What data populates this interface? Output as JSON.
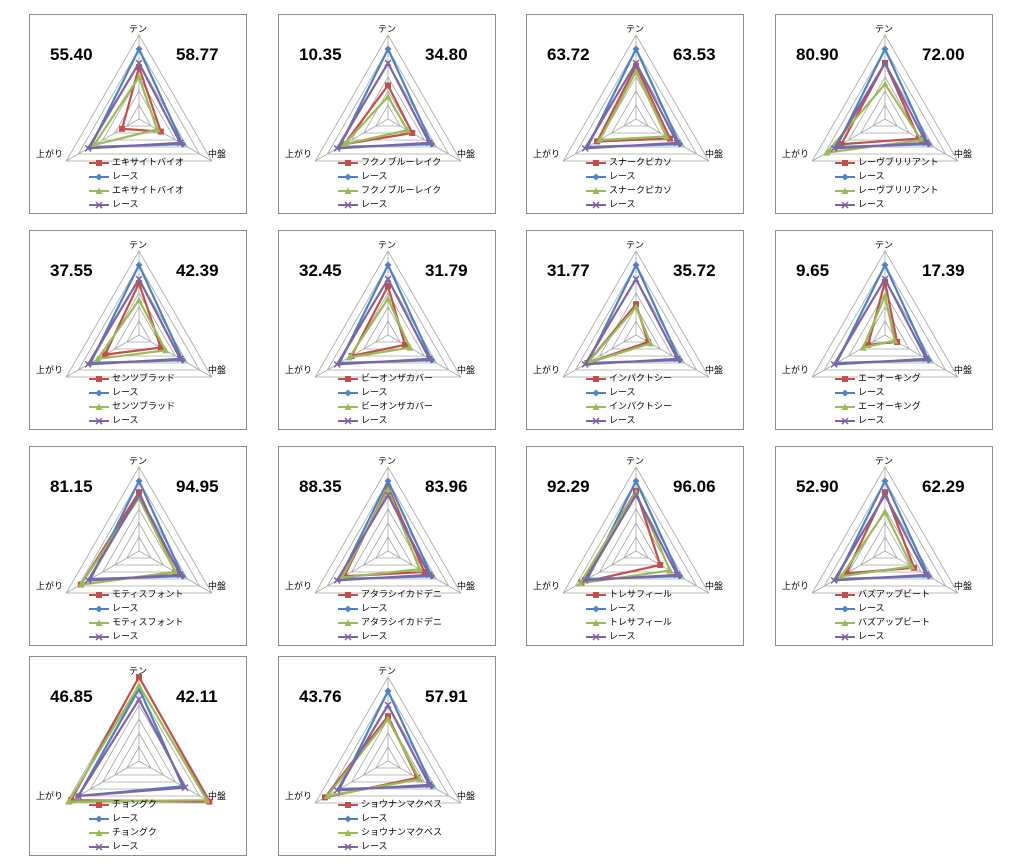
{
  "axes": [
    "テン",
    "中盤",
    "上がり"
  ],
  "colors": {
    "horse": "#c0504d",
    "race": "#4f81bd",
    "horse2": "#9bbb59",
    "race2": "#8064a2",
    "grid": "#a6a6a6"
  },
  "series_labels": {
    "race": "レース"
  },
  "chart_data": [
    {
      "type": "radar",
      "horse": "エキサイトバイオ",
      "left_value": "55.40",
      "right_value": "58.77",
      "rlim": [
        0,
        6
      ],
      "series": [
        {
          "name": "エキサイトバイオ",
          "values": [
            3.7,
            1.8,
            1.4
          ]
        },
        {
          "name": "レース",
          "values": [
            5.0,
            3.6,
            4.0
          ]
        },
        {
          "name": "エキサイトバイオ",
          "values": [
            3.0,
            1.5,
            3.7
          ]
        },
        {
          "name": "レース",
          "values": [
            4.0,
            3.4,
            4.2
          ]
        }
      ]
    },
    {
      "type": "radar",
      "horse": "フクノブルーレイク",
      "left_value": "10.35",
      "right_value": "34.80",
      "rlim": [
        0,
        6
      ],
      "series": [
        {
          "name": "フクノブルーレイク",
          "values": [
            2.4,
            2.0,
            3.6
          ]
        },
        {
          "name": "レース",
          "values": [
            5.0,
            3.6,
            4.0
          ]
        },
        {
          "name": "フクノブルーレイク",
          "values": [
            1.6,
            1.6,
            3.6
          ]
        },
        {
          "name": "レース",
          "values": [
            4.0,
            3.4,
            4.2
          ]
        }
      ]
    },
    {
      "type": "radar",
      "horse": "スナークピカソ",
      "left_value": "63.72",
      "right_value": "63.53",
      "rlim": [
        0,
        6
      ],
      "series": [
        {
          "name": "スナークピカソ",
          "values": [
            3.8,
            2.8,
            3.2
          ]
        },
        {
          "name": "レース",
          "values": [
            5.0,
            3.6,
            4.0
          ]
        },
        {
          "name": "スナークピカソ",
          "values": [
            3.4,
            2.5,
            3.0
          ]
        },
        {
          "name": "レース",
          "values": [
            4.0,
            3.4,
            4.2
          ]
        }
      ]
    },
    {
      "type": "radar",
      "horse": "レーヴブリリアント",
      "left_value": "80.90",
      "right_value": "72.00",
      "rlim": [
        0,
        6
      ],
      "series": [
        {
          "name": "レーヴブリリアント",
          "values": [
            4.0,
            2.8,
            3.6
          ]
        },
        {
          "name": "レース",
          "values": [
            5.0,
            3.6,
            4.0
          ]
        },
        {
          "name": "レーヴブリリアント",
          "values": [
            2.5,
            3.0,
            4.8
          ]
        },
        {
          "name": "レース",
          "values": [
            4.0,
            3.4,
            4.2
          ]
        }
      ]
    },
    {
      "type": "radar",
      "horse": "センツブラッド",
      "left_value": "37.55",
      "right_value": "42.39",
      "rlim": [
        0,
        6
      ],
      "series": [
        {
          "name": "センツブラッド",
          "values": [
            3.7,
            1.8,
            2.8
          ]
        },
        {
          "name": "レース",
          "values": [
            5.0,
            3.6,
            4.0
          ]
        },
        {
          "name": "センツブラッド",
          "values": [
            2.5,
            2.2,
            3.4
          ]
        },
        {
          "name": "レース",
          "values": [
            4.0,
            3.4,
            4.2
          ]
        }
      ]
    },
    {
      "type": "radar",
      "horse": "ビーオンザカバー",
      "left_value": "32.45",
      "right_value": "31.79",
      "rlim": [
        0,
        6
      ],
      "series": [
        {
          "name": "ビーオンザカバー",
          "values": [
            3.5,
            1.4,
            3.0
          ]
        },
        {
          "name": "レース",
          "values": [
            5.0,
            3.6,
            4.0
          ]
        },
        {
          "name": "ビーオンザカバー",
          "values": [
            2.6,
            1.8,
            3.2
          ]
        },
        {
          "name": "レース",
          "values": [
            4.0,
            3.4,
            4.2
          ]
        }
      ]
    },
    {
      "type": "radar",
      "horse": "インパクトシー",
      "left_value": "31.77",
      "right_value": "35.72",
      "rlim": [
        0,
        6
      ],
      "series": [
        {
          "name": "インパクトシー",
          "values": [
            2.2,
            1.0,
            4.0
          ]
        },
        {
          "name": "レース",
          "values": [
            5.0,
            3.6,
            4.0
          ]
        },
        {
          "name": "インパクトシー",
          "values": [
            2.0,
            1.2,
            4.0
          ]
        },
        {
          "name": "レース",
          "values": [
            4.0,
            3.4,
            4.2
          ]
        }
      ]
    },
    {
      "type": "radar",
      "horse": "エーオーキング",
      "left_value": "9.65",
      "right_value": "17.39",
      "rlim": [
        0,
        6
      ],
      "series": [
        {
          "name": "エーオーキング",
          "values": [
            3.8,
            1.0,
            1.4
          ]
        },
        {
          "name": "レース",
          "values": [
            5.0,
            3.6,
            4.0
          ]
        },
        {
          "name": "エーオーキング",
          "values": [
            2.8,
            0.8,
            1.8
          ]
        },
        {
          "name": "レース",
          "values": [
            4.0,
            3.4,
            4.2
          ]
        }
      ]
    },
    {
      "type": "radar",
      "horse": "モティスフォント",
      "left_value": "81.15",
      "right_value": "94.95",
      "rlim": [
        0,
        6
      ],
      "series": [
        {
          "name": "モティスフォント",
          "values": [
            4.2,
            3.0,
            4.8
          ]
        },
        {
          "name": "レース",
          "values": [
            5.0,
            3.6,
            4.0
          ]
        },
        {
          "name": "モティスフォント",
          "values": [
            3.8,
            3.0,
            4.8
          ]
        },
        {
          "name": "レース",
          "values": [
            4.0,
            3.4,
            4.2
          ]
        }
      ]
    },
    {
      "type": "radar",
      "horse": "アタラシイカドデニ",
      "left_value": "88.35",
      "right_value": "83.96",
      "rlim": [
        0,
        6
      ],
      "series": [
        {
          "name": "アタラシイカドデニ",
          "values": [
            4.6,
            3.0,
            3.6
          ]
        },
        {
          "name": "レース",
          "values": [
            5.0,
            3.6,
            4.0
          ]
        },
        {
          "name": "アタラシイカドデニ",
          "values": [
            4.4,
            2.6,
            3.8
          ]
        },
        {
          "name": "レース",
          "values": [
            4.0,
            3.4,
            4.2
          ]
        }
      ]
    },
    {
      "type": "radar",
      "horse": "トレサフィール",
      "left_value": "92.29",
      "right_value": "96.06",
      "rlim": [
        0,
        6
      ],
      "series": [
        {
          "name": "トレサフィール",
          "values": [
            4.3,
            2.0,
            4.5
          ]
        },
        {
          "name": "レース",
          "values": [
            5.0,
            3.6,
            4.0
          ]
        },
        {
          "name": "トレサフィール",
          "values": [
            4.2,
            2.8,
            4.6
          ]
        },
        {
          "name": "レース",
          "values": [
            4.0,
            3.4,
            4.2
          ]
        }
      ]
    },
    {
      "type": "radar",
      "horse": "バズアップビート",
      "left_value": "52.90",
      "right_value": "62.29",
      "rlim": [
        0,
        6
      ],
      "series": [
        {
          "name": "バズアップビート",
          "values": [
            4.2,
            2.4,
            3.2
          ]
        },
        {
          "name": "レース",
          "values": [
            5.0,
            3.6,
            4.0
          ]
        },
        {
          "name": "バズアップビート",
          "values": [
            2.8,
            2.2,
            3.6
          ]
        },
        {
          "name": "レース",
          "values": [
            4.0,
            3.4,
            4.2
          ]
        }
      ]
    },
    {
      "type": "radar",
      "horse": "チョングク",
      "left_value": "46.85",
      "right_value": "42.11",
      "rlim": [
        0,
        6
      ],
      "series": [
        {
          "name": "チョングク",
          "values": [
            6.0,
            5.8,
            5.6
          ]
        },
        {
          "name": "レース",
          "values": [
            5.2,
            3.6,
            5.0
          ]
        },
        {
          "name": "チョングク",
          "values": [
            5.4,
            5.6,
            5.8
          ]
        },
        {
          "name": "レース",
          "values": [
            4.4,
            3.8,
            5.0
          ]
        }
      ]
    },
    {
      "type": "radar",
      "horse": "ショウナンマクベス",
      "left_value": "43.76",
      "right_value": "57.91",
      "rlim": [
        0,
        6
      ],
      "series": [
        {
          "name": "ショウナンマクベス",
          "values": [
            3.2,
            2.4,
            5.2
          ]
        },
        {
          "name": "レース",
          "values": [
            5.0,
            3.6,
            4.0
          ]
        },
        {
          "name": "ショウナンマクベス",
          "values": [
            3.0,
            2.6,
            5.0
          ]
        },
        {
          "name": "レース",
          "values": [
            4.0,
            3.4,
            4.2
          ]
        }
      ]
    }
  ]
}
